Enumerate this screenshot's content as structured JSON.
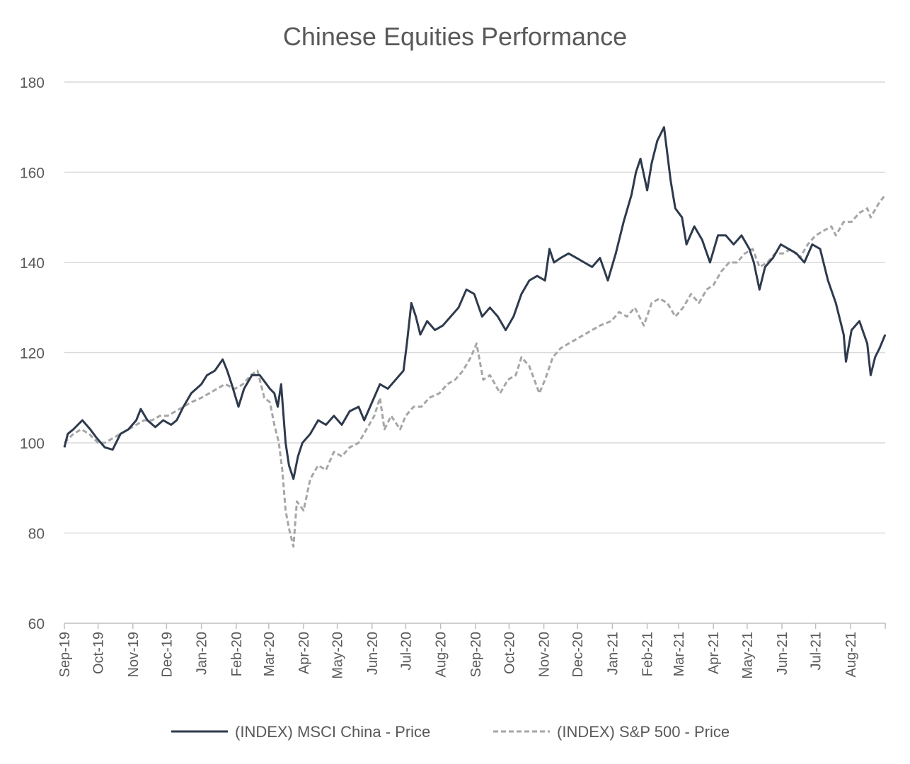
{
  "chart_data": {
    "type": "line",
    "title": "Chinese Equities Performance",
    "ylim": [
      60,
      180
    ],
    "yticks": [
      "60",
      "80",
      "100",
      "120",
      "140",
      "160",
      "180"
    ],
    "xlim": [
      "2019-09-01",
      "2021-09-01"
    ],
    "x_tick_labels": [
      "Sep-19",
      "Oct-19",
      "Nov-19",
      "Dec-19",
      "Jan-20",
      "Feb-20",
      "Mar-20",
      "Apr-20",
      "May-20",
      "Jun-20",
      "Jul-20",
      "Aug-20",
      "Sep-20",
      "Oct-20",
      "Nov-20",
      "Dec-20",
      "Jan-21",
      "Feb-21",
      "Mar-21",
      "Apr-21",
      "May-21",
      "Jun-21",
      "Jul-21",
      "Aug-21"
    ],
    "grid": true,
    "legend_position": "bottom",
    "series": [
      {
        "name": "(INDEX) MSCI China - Price",
        "color": "#2e3a4d",
        "style": "solid",
        "points": [
          [
            "2019-09-01",
            99
          ],
          [
            "2019-09-04",
            102
          ],
          [
            "2019-09-09",
            103
          ],
          [
            "2019-09-13",
            104
          ],
          [
            "2019-09-17",
            105
          ],
          [
            "2019-09-24",
            103
          ],
          [
            "2019-09-30",
            101
          ],
          [
            "2019-10-07",
            99
          ],
          [
            "2019-10-14",
            98.5
          ],
          [
            "2019-10-21",
            102
          ],
          [
            "2019-10-28",
            103
          ],
          [
            "2019-11-04",
            105
          ],
          [
            "2019-11-08",
            107.5
          ],
          [
            "2019-11-14",
            105
          ],
          [
            "2019-11-21",
            103.5
          ],
          [
            "2019-11-28",
            105
          ],
          [
            "2019-12-05",
            104
          ],
          [
            "2019-12-10",
            105
          ],
          [
            "2019-12-16",
            108
          ],
          [
            "2019-12-23",
            111
          ],
          [
            "2020-01-01",
            113
          ],
          [
            "2020-01-06",
            115
          ],
          [
            "2020-01-13",
            116
          ],
          [
            "2020-01-20",
            118.5
          ],
          [
            "2020-01-24",
            116
          ],
          [
            "2020-01-28",
            113
          ],
          [
            "2020-02-03",
            108
          ],
          [
            "2020-02-08",
            112
          ],
          [
            "2020-02-15",
            115
          ],
          [
            "2020-02-22",
            115
          ],
          [
            "2020-03-02",
            112
          ],
          [
            "2020-03-06",
            111
          ],
          [
            "2020-03-09",
            108
          ],
          [
            "2020-03-12",
            113
          ],
          [
            "2020-03-16",
            100
          ],
          [
            "2020-03-19",
            95
          ],
          [
            "2020-03-23",
            92
          ],
          [
            "2020-03-27",
            97
          ],
          [
            "2020-03-31",
            100
          ],
          [
            "2020-04-07",
            102
          ],
          [
            "2020-04-14",
            105
          ],
          [
            "2020-04-21",
            104
          ],
          [
            "2020-04-28",
            106
          ],
          [
            "2020-05-05",
            104
          ],
          [
            "2020-05-12",
            107
          ],
          [
            "2020-05-20",
            108
          ],
          [
            "2020-05-25",
            105
          ],
          [
            "2020-06-01",
            109
          ],
          [
            "2020-06-08",
            113
          ],
          [
            "2020-06-15",
            112
          ],
          [
            "2020-06-22",
            114
          ],
          [
            "2020-06-29",
            116
          ],
          [
            "2020-07-02",
            122
          ],
          [
            "2020-07-06",
            131
          ],
          [
            "2020-07-10",
            128
          ],
          [
            "2020-07-14",
            124
          ],
          [
            "2020-07-20",
            127
          ],
          [
            "2020-07-27",
            125
          ],
          [
            "2020-08-03",
            126
          ],
          [
            "2020-08-10",
            128
          ],
          [
            "2020-08-17",
            130
          ],
          [
            "2020-08-24",
            134
          ],
          [
            "2020-08-31",
            133
          ],
          [
            "2020-09-07",
            128
          ],
          [
            "2020-09-14",
            130
          ],
          [
            "2020-09-21",
            128
          ],
          [
            "2020-09-28",
            125
          ],
          [
            "2020-10-05",
            128
          ],
          [
            "2020-10-12",
            133
          ],
          [
            "2020-10-19",
            136
          ],
          [
            "2020-10-26",
            137
          ],
          [
            "2020-11-02",
            136
          ],
          [
            "2020-11-06",
            143
          ],
          [
            "2020-11-10",
            140
          ],
          [
            "2020-11-16",
            141
          ],
          [
            "2020-11-23",
            142
          ],
          [
            "2020-11-30",
            141
          ],
          [
            "2020-12-07",
            140
          ],
          [
            "2020-12-14",
            139
          ],
          [
            "2020-12-21",
            141
          ],
          [
            "2020-12-28",
            136
          ],
          [
            "2021-01-04",
            142
          ],
          [
            "2021-01-11",
            149
          ],
          [
            "2021-01-18",
            155
          ],
          [
            "2021-01-22",
            160
          ],
          [
            "2021-01-26",
            163
          ],
          [
            "2021-02-01",
            156
          ],
          [
            "2021-02-05",
            162
          ],
          [
            "2021-02-10",
            167
          ],
          [
            "2021-02-16",
            170
          ],
          [
            "2021-02-22",
            158
          ],
          [
            "2021-02-26",
            152
          ],
          [
            "2021-03-04",
            150
          ],
          [
            "2021-03-08",
            144
          ],
          [
            "2021-03-15",
            148
          ],
          [
            "2021-03-22",
            145
          ],
          [
            "2021-03-29",
            140
          ],
          [
            "2021-04-05",
            146
          ],
          [
            "2021-04-12",
            146
          ],
          [
            "2021-04-19",
            144
          ],
          [
            "2021-04-26",
            146
          ],
          [
            "2021-05-03",
            143
          ],
          [
            "2021-05-07",
            140
          ],
          [
            "2021-05-12",
            134
          ],
          [
            "2021-05-17",
            139
          ],
          [
            "2021-05-24",
            141
          ],
          [
            "2021-05-31",
            144
          ],
          [
            "2021-06-07",
            143
          ],
          [
            "2021-06-14",
            142
          ],
          [
            "2021-06-21",
            140
          ],
          [
            "2021-06-28",
            144
          ],
          [
            "2021-07-05",
            143
          ],
          [
            "2021-07-12",
            136
          ],
          [
            "2021-07-19",
            131
          ],
          [
            "2021-07-26",
            124
          ],
          [
            "2021-07-28",
            118
          ],
          [
            "2021-08-02",
            125
          ],
          [
            "2021-08-09",
            127
          ],
          [
            "2021-08-16",
            122
          ],
          [
            "2021-08-19",
            115
          ],
          [
            "2021-08-23",
            119
          ],
          [
            "2021-08-27",
            121
          ],
          [
            "2021-09-01",
            124
          ]
        ]
      },
      {
        "name": "(INDEX) S&P 500 - Price",
        "color": "#a6a6a6",
        "style": "dashed",
        "points": [
          [
            "2019-09-01",
            100
          ],
          [
            "2019-09-09",
            102
          ],
          [
            "2019-09-16",
            103
          ],
          [
            "2019-09-23",
            102
          ],
          [
            "2019-10-01",
            100
          ],
          [
            "2019-10-07",
            100
          ],
          [
            "2019-10-14",
            101
          ],
          [
            "2019-10-21",
            102
          ],
          [
            "2019-10-28",
            103
          ],
          [
            "2019-11-04",
            104
          ],
          [
            "2019-11-11",
            105
          ],
          [
            "2019-11-18",
            105
          ],
          [
            "2019-11-25",
            106
          ],
          [
            "2019-12-02",
            106
          ],
          [
            "2019-12-09",
            107
          ],
          [
            "2019-12-16",
            108
          ],
          [
            "2019-12-23",
            109
          ],
          [
            "2020-01-01",
            110
          ],
          [
            "2020-01-08",
            111
          ],
          [
            "2020-01-15",
            112
          ],
          [
            "2020-01-22",
            113
          ],
          [
            "2020-01-31",
            112
          ],
          [
            "2020-02-07",
            113
          ],
          [
            "2020-02-14",
            115
          ],
          [
            "2020-02-20",
            116
          ],
          [
            "2020-02-26",
            110
          ],
          [
            "2020-03-02",
            109
          ],
          [
            "2020-03-06",
            104
          ],
          [
            "2020-03-10",
            100
          ],
          [
            "2020-03-13",
            94
          ],
          [
            "2020-03-16",
            85
          ],
          [
            "2020-03-19",
            81
          ],
          [
            "2020-03-23",
            77
          ],
          [
            "2020-03-26",
            87
          ],
          [
            "2020-04-01",
            85
          ],
          [
            "2020-04-07",
            92
          ],
          [
            "2020-04-14",
            95
          ],
          [
            "2020-04-21",
            94
          ],
          [
            "2020-04-28",
            98
          ],
          [
            "2020-05-05",
            97
          ],
          [
            "2020-05-12",
            99
          ],
          [
            "2020-05-20",
            100
          ],
          [
            "2020-05-27",
            103
          ],
          [
            "2020-06-03",
            106
          ],
          [
            "2020-06-08",
            110
          ],
          [
            "2020-06-12",
            103
          ],
          [
            "2020-06-18",
            106
          ],
          [
            "2020-06-26",
            103
          ],
          [
            "2020-07-01",
            106
          ],
          [
            "2020-07-08",
            108
          ],
          [
            "2020-07-15",
            108
          ],
          [
            "2020-07-22",
            110
          ],
          [
            "2020-07-31",
            111
          ],
          [
            "2020-08-07",
            113
          ],
          [
            "2020-08-14",
            114
          ],
          [
            "2020-08-21",
            116
          ],
          [
            "2020-08-28",
            119
          ],
          [
            "2020-09-02",
            122
          ],
          [
            "2020-09-08",
            114
          ],
          [
            "2020-09-14",
            115
          ],
          [
            "2020-09-23",
            111
          ],
          [
            "2020-09-30",
            114
          ],
          [
            "2020-10-07",
            115
          ],
          [
            "2020-10-12",
            119
          ],
          [
            "2020-10-19",
            117
          ],
          [
            "2020-10-28",
            111
          ],
          [
            "2020-11-02",
            114
          ],
          [
            "2020-11-09",
            119
          ],
          [
            "2020-11-16",
            121
          ],
          [
            "2020-11-23",
            122
          ],
          [
            "2020-11-30",
            123
          ],
          [
            "2020-12-07",
            124
          ],
          [
            "2020-12-14",
            125
          ],
          [
            "2020-12-21",
            126
          ],
          [
            "2020-12-31",
            127
          ],
          [
            "2021-01-07",
            129
          ],
          [
            "2021-01-14",
            128
          ],
          [
            "2021-01-21",
            130
          ],
          [
            "2021-01-29",
            126
          ],
          [
            "2021-02-05",
            131
          ],
          [
            "2021-02-12",
            132
          ],
          [
            "2021-02-19",
            131
          ],
          [
            "2021-02-26",
            128
          ],
          [
            "2021-03-05",
            130
          ],
          [
            "2021-03-12",
            133
          ],
          [
            "2021-03-19",
            131
          ],
          [
            "2021-03-26",
            134
          ],
          [
            "2021-04-01",
            135
          ],
          [
            "2021-04-08",
            138
          ],
          [
            "2021-04-15",
            140
          ],
          [
            "2021-04-22",
            140
          ],
          [
            "2021-04-29",
            142
          ],
          [
            "2021-05-06",
            143
          ],
          [
            "2021-05-12",
            139
          ],
          [
            "2021-05-19",
            140
          ],
          [
            "2021-05-26",
            142
          ],
          [
            "2021-06-02",
            142
          ],
          [
            "2021-06-09",
            143
          ],
          [
            "2021-06-17",
            141
          ],
          [
            "2021-06-24",
            144
          ],
          [
            "2021-07-01",
            146
          ],
          [
            "2021-07-08",
            147
          ],
          [
            "2021-07-15",
            148
          ],
          [
            "2021-07-19",
            146
          ],
          [
            "2021-07-26",
            149
          ],
          [
            "2021-08-02",
            149
          ],
          [
            "2021-08-09",
            151
          ],
          [
            "2021-08-16",
            152
          ],
          [
            "2021-08-19",
            150
          ],
          [
            "2021-08-26",
            153
          ],
          [
            "2021-09-01",
            155
          ]
        ]
      }
    ]
  }
}
